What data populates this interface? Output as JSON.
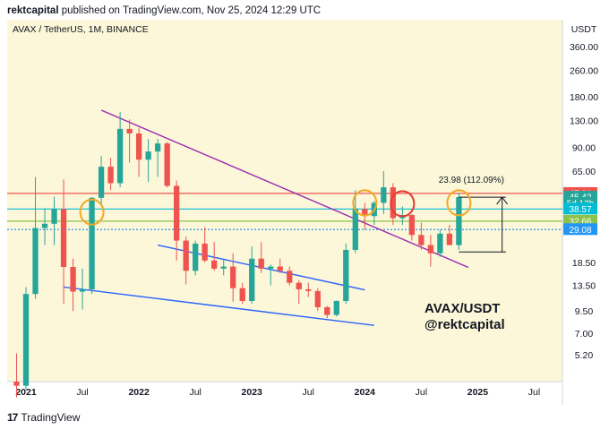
{
  "header": {
    "publisher": "rektcapital",
    "published_text": "published on TradingView.com, Nov 25, 2024 12:29 UTC"
  },
  "footer": {
    "logo_glyph": "17",
    "brand": "TradingView"
  },
  "colors": {
    "background": "#fbf7d8",
    "candle_up": "#26a69a",
    "candle_down": "#ef5350",
    "purple_line": "#9c27b0",
    "blue_line": "#2962ff",
    "circle_orange": "#f5a623",
    "circle_red": "#e53935"
  },
  "chart_data": {
    "type": "candlestick",
    "title": "AVAX / TetherUS, 1M, BINANCE",
    "annotation": [
      "AVAX/USDT",
      "@rektcapital"
    ],
    "y_unit": "USDT",
    "y_scale": "log",
    "ylim": [
      3.6,
      520
    ],
    "y_ticks": [
      360.0,
      260.0,
      180.0,
      130.0,
      90.0,
      65.0,
      18.5,
      13.5,
      9.5,
      7.0,
      5.2
    ],
    "x_ticks": [
      "2021",
      "Jul",
      "2022",
      "Jul",
      "2023",
      "Jul",
      "2024",
      "Jul",
      "2025",
      "Jul"
    ],
    "x_tick_months": [
      "2021-01",
      "2021-07",
      "2022-01",
      "2022-07",
      "2023-01",
      "2023-07",
      "2024-01",
      "2024-07",
      "2025-01",
      "2025-07"
    ],
    "xlim": [
      "2020-11",
      "2025-10"
    ],
    "candles": [
      {
        "month": "2020-12",
        "open": 3.6,
        "high": 5.3,
        "low": 2.9,
        "close": 3.4
      },
      {
        "month": "2021-01",
        "open": 3.4,
        "high": 13.2,
        "low": 3.2,
        "close": 12.0
      },
      {
        "month": "2021-02",
        "open": 12.0,
        "high": 59.9,
        "low": 11.2,
        "close": 29.7
      },
      {
        "month": "2021-03",
        "open": 29.7,
        "high": 38.9,
        "low": 23.5,
        "close": 31.5
      },
      {
        "month": "2021-04",
        "open": 31.5,
        "high": 45.7,
        "low": 23.5,
        "close": 38.6
      },
      {
        "month": "2021-05",
        "open": 38.6,
        "high": 58.0,
        "low": 10.5,
        "close": 17.4
      },
      {
        "month": "2021-06",
        "open": 17.4,
        "high": 19.5,
        "low": 9.5,
        "close": 12.4
      },
      {
        "month": "2021-07",
        "open": 12.4,
        "high": 17.0,
        "low": 9.7,
        "close": 12.8
      },
      {
        "month": "2021-08",
        "open": 12.8,
        "high": 45.4,
        "low": 12.0,
        "close": 45.0
      },
      {
        "month": "2021-09",
        "open": 45.0,
        "high": 80.0,
        "low": 40.0,
        "close": 69.0
      },
      {
        "month": "2021-10",
        "open": 69.0,
        "high": 78.0,
        "low": 50.0,
        "close": 55.0
      },
      {
        "month": "2021-11",
        "open": 55.0,
        "high": 146.0,
        "low": 52.0,
        "close": 116.0
      },
      {
        "month": "2021-12",
        "open": 116.0,
        "high": 132.0,
        "low": 73.0,
        "close": 109.0
      },
      {
        "month": "2022-01",
        "open": 109.0,
        "high": 118.0,
        "low": 60.0,
        "close": 76.0
      },
      {
        "month": "2022-02",
        "open": 76.0,
        "high": 101.0,
        "low": 56.0,
        "close": 85.0
      },
      {
        "month": "2022-03",
        "open": 85.0,
        "high": 101.0,
        "low": 60.0,
        "close": 95.0
      },
      {
        "month": "2022-04",
        "open": 95.0,
        "high": 97.0,
        "low": 52.0,
        "close": 53.0
      },
      {
        "month": "2022-05",
        "open": 53.0,
        "high": 57.0,
        "low": 19.0,
        "close": 25.0
      },
      {
        "month": "2022-06",
        "open": 25.0,
        "high": 26.5,
        "low": 13.7,
        "close": 16.5
      },
      {
        "month": "2022-07",
        "open": 16.5,
        "high": 25.0,
        "low": 15.5,
        "close": 24.0
      },
      {
        "month": "2022-08",
        "open": 24.0,
        "high": 30.0,
        "low": 18.5,
        "close": 19.0
      },
      {
        "month": "2022-09",
        "open": 19.0,
        "high": 24.5,
        "low": 16.5,
        "close": 17.0
      },
      {
        "month": "2022-10",
        "open": 17.0,
        "high": 19.5,
        "low": 15.5,
        "close": 17.5
      },
      {
        "month": "2022-11",
        "open": 17.5,
        "high": 21.0,
        "low": 10.8,
        "close": 13.0
      },
      {
        "month": "2022-12",
        "open": 13.0,
        "high": 14.0,
        "low": 10.5,
        "close": 10.9
      },
      {
        "month": "2023-01",
        "open": 10.9,
        "high": 23.0,
        "low": 10.5,
        "close": 19.5
      },
      {
        "month": "2023-02",
        "open": 19.5,
        "high": 24.5,
        "low": 16.0,
        "close": 17.0
      },
      {
        "month": "2023-03",
        "open": 17.0,
        "high": 18.0,
        "low": 13.5,
        "close": 17.5
      },
      {
        "month": "2023-04",
        "open": 17.5,
        "high": 19.5,
        "low": 16.0,
        "close": 16.5
      },
      {
        "month": "2023-05",
        "open": 16.5,
        "high": 17.5,
        "low": 13.5,
        "close": 14.0
      },
      {
        "month": "2023-06",
        "open": 14.0,
        "high": 14.5,
        "low": 10.5,
        "close": 12.8
      },
      {
        "month": "2023-07",
        "open": 12.8,
        "high": 14.0,
        "low": 11.5,
        "close": 12.5
      },
      {
        "month": "2023-08",
        "open": 12.5,
        "high": 13.0,
        "low": 9.5,
        "close": 10.0
      },
      {
        "month": "2023-09",
        "open": 10.0,
        "high": 10.2,
        "low": 8.6,
        "close": 9.0
      },
      {
        "month": "2023-10",
        "open": 9.0,
        "high": 11.0,
        "low": 8.8,
        "close": 10.9
      },
      {
        "month": "2023-11",
        "open": 10.9,
        "high": 24.0,
        "low": 10.5,
        "close": 22.0
      },
      {
        "month": "2023-12",
        "open": 22.0,
        "high": 50.0,
        "low": 21.0,
        "close": 38.6
      },
      {
        "month": "2024-01",
        "open": 38.6,
        "high": 42.0,
        "low": 29.0,
        "close": 35.0
      },
      {
        "month": "2024-02",
        "open": 35.0,
        "high": 43.0,
        "low": 31.0,
        "close": 42.0
      },
      {
        "month": "2024-03",
        "open": 42.0,
        "high": 65.0,
        "low": 36.0,
        "close": 52.0
      },
      {
        "month": "2024-04",
        "open": 52.0,
        "high": 55.0,
        "low": 31.0,
        "close": 34.0
      },
      {
        "month": "2024-05",
        "open": 34.0,
        "high": 40.0,
        "low": 31.0,
        "close": 35.5
      },
      {
        "month": "2024-06",
        "open": 35.5,
        "high": 36.0,
        "low": 25.0,
        "close": 27.0
      },
      {
        "month": "2024-07",
        "open": 27.0,
        "high": 32.0,
        "low": 22.0,
        "close": 23.5
      },
      {
        "month": "2024-08",
        "open": 23.5,
        "high": 27.0,
        "low": 17.5,
        "close": 21.0
      },
      {
        "month": "2024-09",
        "open": 21.0,
        "high": 29.0,
        "low": 20.0,
        "close": 27.5
      },
      {
        "month": "2024-10",
        "open": 27.5,
        "high": 31.0,
        "low": 24.5,
        "close": 23.5
      },
      {
        "month": "2024-11",
        "open": 23.5,
        "high": 48.0,
        "low": 22.0,
        "close": 45.42
      }
    ],
    "horizontal_levels": [
      {
        "value": 47.81,
        "color": "#ef5350",
        "style": "solid"
      },
      {
        "value": 38.57,
        "color": "#00bcd4",
        "style": "solid"
      },
      {
        "value": 32.66,
        "color": "#8bc34a",
        "style": "solid"
      },
      {
        "value": 29.08,
        "color": "#2196f3",
        "style": "dotted"
      }
    ],
    "price_labels": [
      {
        "text": "47.81",
        "value": 47.81,
        "color": "#ef5350"
      },
      {
        "text": "45.42",
        "value": 45.42,
        "color": "#26a69a"
      },
      {
        "text": "5d 12h",
        "value": 41.7,
        "color": "#26a69a"
      },
      {
        "text": "38.57",
        "value": 38.57,
        "color": "#00bcd4"
      },
      {
        "text": "32.66",
        "value": 32.66,
        "color": "#8bc34a"
      },
      {
        "text": "29.08",
        "value": 29.08,
        "color": "#2196f3"
      }
    ],
    "measure": {
      "label": "23.98 (112.09%)",
      "from_month": "2024-11",
      "to_month": "2025-04",
      "low": 21.4,
      "high": 45.4
    },
    "trendlines": [
      {
        "name": "descending-resistance",
        "color": "#9c27b0",
        "from": [
          "2021-09",
          150.0
        ],
        "to": [
          "2024-12",
          17.3
        ]
      },
      {
        "name": "falling-wedge-upper",
        "color": "#2962ff",
        "from": [
          "2022-03",
          23.5
        ],
        "to": [
          "2024-01",
          12.7
        ]
      },
      {
        "name": "falling-wedge-lower",
        "color": "#2962ff",
        "from": [
          "2021-05",
          13.2
        ],
        "to": [
          "2024-02",
          7.8
        ]
      }
    ],
    "circles": [
      {
        "month": "2021-08",
        "value": 37.0,
        "color": "#f5a623"
      },
      {
        "month": "2024-01",
        "value": 42.0,
        "color": "#f5a623"
      },
      {
        "month": "2024-05",
        "value": 41.5,
        "color": "#e53935"
      },
      {
        "month": "2024-11",
        "value": 42.0,
        "color": "#f5a623"
      }
    ]
  }
}
